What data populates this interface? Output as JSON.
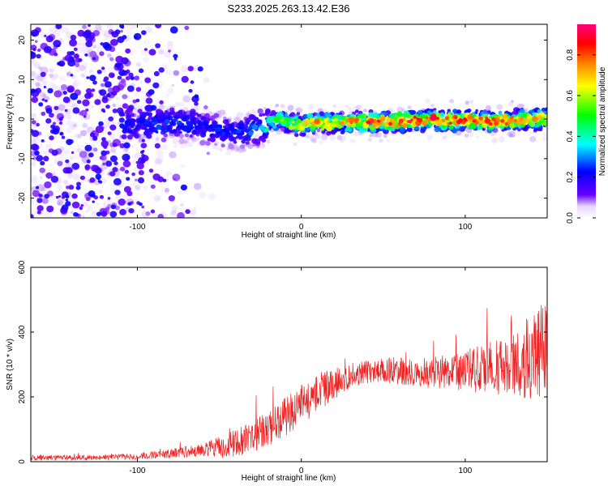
{
  "title": "S233.2025.263.13.42.E36",
  "chart_data": [
    {
      "type": "heatmap",
      "xlabel": "Height of straight line (km)",
      "ylabel": "Frequency (Hz)",
      "xlim": [
        -165,
        150
      ],
      "ylim": [
        -25,
        24
      ],
      "xticks": [
        -100,
        0,
        100
      ],
      "yticks": [
        -20,
        -10,
        0,
        10,
        20
      ],
      "grid": false,
      "colorbar": {
        "label": "Normalized spectral amplitude",
        "range": [
          0.0,
          0.95
        ],
        "ticks": [
          0.0,
          0.2,
          0.4,
          0.6,
          0.8
        ],
        "colormap": [
          "#ffffff",
          "#e6d5ff",
          "#6600ff",
          "#0000ff",
          "#00ffff",
          "#00ff00",
          "#ffff00",
          "#ff8000",
          "#ff0000",
          "#ff0080"
        ]
      },
      "ridge": [
        {
          "x": -100,
          "f": -1.5,
          "a": 0.22
        },
        {
          "x": -80,
          "f": -1.0,
          "a": 0.28
        },
        {
          "x": -60,
          "f": -2.0,
          "a": 0.22
        },
        {
          "x": -40,
          "f": -4.0,
          "a": 0.25
        },
        {
          "x": -25,
          "f": -2.5,
          "a": 0.32
        },
        {
          "x": -15,
          "f": 0.0,
          "a": 0.55
        },
        {
          "x": -5,
          "f": -1.5,
          "a": 0.6
        },
        {
          "x": 10,
          "f": -1.0,
          "a": 0.75
        },
        {
          "x": 40,
          "f": -0.8,
          "a": 0.8
        },
        {
          "x": 80,
          "f": -0.3,
          "a": 0.85
        },
        {
          "x": 120,
          "f": -0.5,
          "a": 0.8
        },
        {
          "x": 150,
          "f": 0.0,
          "a": 0.7
        }
      ]
    },
    {
      "type": "line",
      "xlabel": "Height of straight line (km)",
      "ylabel": "SNR (10 * v/v)",
      "xlim": [
        -165,
        150
      ],
      "ylim": [
        0,
        600
      ],
      "xticks": [
        -100,
        0,
        100
      ],
      "yticks": [
        0,
        200,
        400,
        600
      ],
      "grid": false,
      "series": [
        {
          "name": "SNR",
          "color": "#ee2222",
          "x": [
            -165,
            -140,
            -120,
            -100,
            -80,
            -60,
            -45,
            -30,
            -15,
            0,
            15,
            30,
            50,
            70,
            90,
            110,
            130,
            140,
            150
          ],
          "y": [
            12,
            12,
            13,
            16,
            25,
            35,
            50,
            75,
            120,
            175,
            225,
            265,
            285,
            275,
            275,
            285,
            300,
            330,
            340
          ],
          "noise": [
            8,
            8,
            8,
            10,
            15,
            20,
            40,
            50,
            60,
            65,
            55,
            40,
            40,
            45,
            55,
            75,
            95,
            140,
            170
          ]
        }
      ]
    }
  ]
}
